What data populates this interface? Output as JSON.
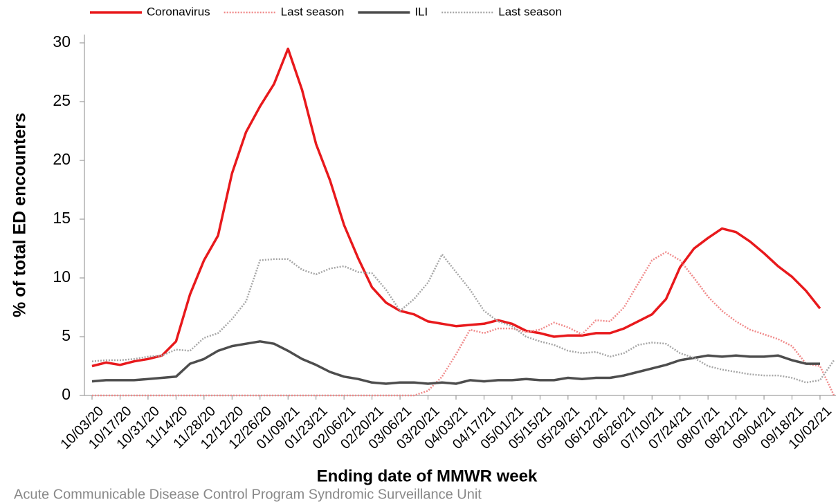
{
  "chart_data": {
    "type": "line",
    "y_label": "% of total ED encounters",
    "x_label": "Ending date of MMWR week",
    "source": "Acute Communicable Disease Control Program Syndromic Surveillance Unit",
    "categories": [
      "10/03/20",
      null,
      "10/17/20",
      null,
      "10/31/20",
      null,
      "11/14/20",
      null,
      "11/28/20",
      null,
      "12/12/20",
      null,
      "12/26/20",
      null,
      "01/09/21",
      null,
      "01/23/21",
      null,
      "02/06/21",
      null,
      "02/20/21",
      null,
      "03/06/21",
      null,
      "03/20/21",
      null,
      "04/03/21",
      null,
      "04/17/21",
      null,
      "05/01/21",
      null,
      "05/15/21",
      null,
      "05/29/21",
      null,
      "06/12/21",
      null,
      "06/26/21",
      null,
      "07/10/21",
      null,
      "07/24/21",
      null,
      "08/07/21",
      null,
      "08/21/21",
      null,
      "09/04/21",
      null,
      "09/18/21",
      null,
      "10/02/21",
      null
    ],
    "series": [
      {
        "name": "Coronavirus",
        "color": "#e8191c",
        "dash": "solid",
        "values": [
          2.5,
          2.8,
          2.6,
          2.9,
          3.1,
          3.4,
          4.6,
          8.6,
          11.5,
          13.6,
          18.9,
          22.4,
          24.6,
          26.5,
          29.5,
          26.0,
          21.4,
          18.3,
          14.5,
          11.7,
          9.2,
          7.9,
          7.2,
          6.9,
          6.3,
          6.1,
          5.9,
          6.0,
          6.1,
          6.4,
          6.1,
          5.5,
          5.3,
          5.0,
          5.1,
          5.1,
          5.3,
          5.3,
          5.7,
          6.3,
          6.9,
          8.2,
          10.9,
          12.5,
          13.4,
          14.2,
          13.9,
          13.1,
          12.1,
          11.0,
          10.1,
          8.9,
          7.4,
          null
        ]
      },
      {
        "name": "Last season",
        "color": "#f08a8a",
        "dash": "dotted",
        "values": [
          0,
          0,
          0,
          0,
          0,
          0,
          0,
          0,
          0,
          0,
          0,
          0,
          0,
          0,
          0,
          0,
          0,
          0,
          0,
          0,
          0,
          0,
          0,
          0,
          0.4,
          1.6,
          3.5,
          5.6,
          5.3,
          5.7,
          5.7,
          5.4,
          5.6,
          6.2,
          5.8,
          5.2,
          6.4,
          6.3,
          7.5,
          9.5,
          11.5,
          12.2,
          11.5,
          10.0,
          8.4,
          7.2,
          6.3,
          5.6,
          5.2,
          4.8,
          4.2,
          2.7,
          2.5,
          0
        ]
      },
      {
        "name": "ILI",
        "color": "#4d4d4d",
        "dash": "solid",
        "values": [
          1.2,
          1.3,
          1.3,
          1.3,
          1.4,
          1.5,
          1.6,
          2.7,
          3.1,
          3.8,
          4.2,
          4.4,
          4.6,
          4.4,
          3.8,
          3.1,
          2.6,
          2.0,
          1.6,
          1.4,
          1.1,
          1.0,
          1.1,
          1.1,
          1.0,
          1.1,
          1.0,
          1.3,
          1.2,
          1.3,
          1.3,
          1.4,
          1.3,
          1.3,
          1.5,
          1.4,
          1.5,
          1.5,
          1.7,
          2.0,
          2.3,
          2.6,
          3.0,
          3.2,
          3.4,
          3.3,
          3.4,
          3.3,
          3.3,
          3.4,
          3.0,
          2.7,
          2.7,
          null
        ]
      },
      {
        "name": "Last season",
        "color": "#a6a6a6",
        "dash": "dotted",
        "values": [
          2.9,
          3.0,
          3.0,
          3.1,
          3.3,
          3.4,
          3.9,
          3.8,
          4.9,
          5.3,
          6.5,
          8.0,
          11.5,
          11.6,
          11.6,
          10.7,
          10.3,
          10.8,
          11.0,
          10.5,
          10.4,
          9.0,
          7.2,
          8.2,
          9.6,
          12.0,
          10.5,
          9.0,
          7.2,
          6.3,
          5.9,
          5.0,
          4.6,
          4.3,
          3.8,
          3.6,
          3.7,
          3.3,
          3.6,
          4.3,
          4.5,
          4.4,
          3.6,
          3.2,
          2.5,
          2.2,
          2.0,
          1.8,
          1.7,
          1.7,
          1.5,
          1.1,
          1.3,
          3.0
        ]
      }
    ],
    "ylim": [
      0,
      30
    ],
    "yticks": [
      0,
      5,
      10,
      15,
      20,
      25,
      30
    ],
    "grid": false,
    "legend": "top"
  }
}
